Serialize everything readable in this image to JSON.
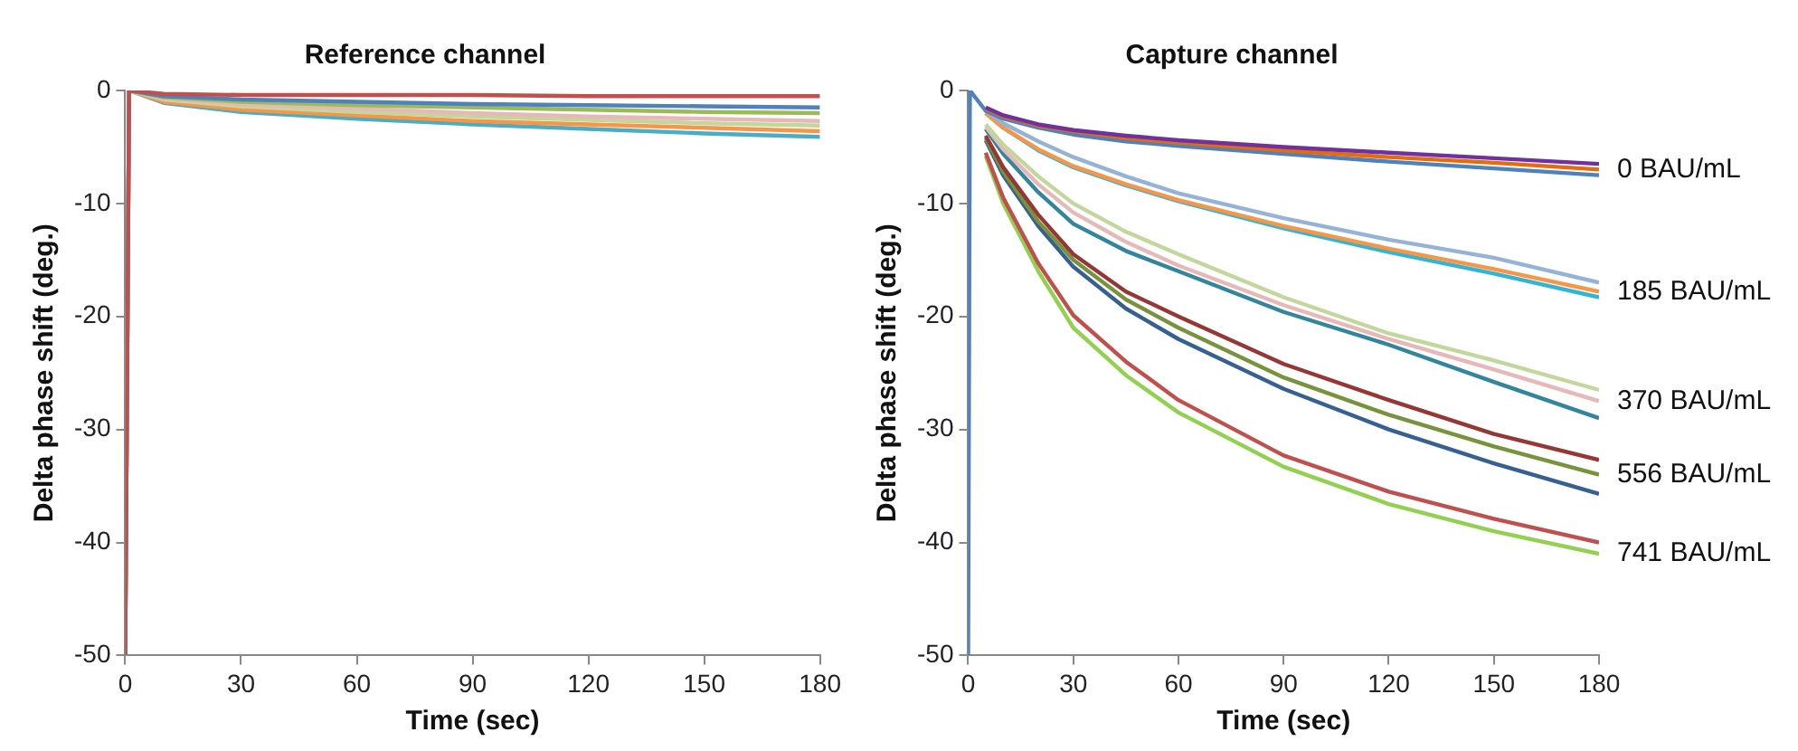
{
  "chart_data": [
    {
      "type": "line",
      "title": "Reference channel",
      "xlabel": "Time (sec)",
      "ylabel": "Delta phase shift (deg.)",
      "x": [
        0,
        1,
        10,
        30,
        60,
        90,
        120,
        150,
        180
      ],
      "xlim": [
        0,
        180
      ],
      "xticks": [
        0,
        30,
        60,
        90,
        120,
        150,
        180
      ],
      "ylim": [
        -50,
        0
      ],
      "yticks": [
        -50,
        -40,
        -30,
        -20,
        -10,
        0
      ],
      "grid": false,
      "legend": false,
      "marker": "none",
      "line_style": "solid",
      "series": [
        {
          "color": "#c0504d",
          "values": [
            -50,
            0,
            -0.3,
            -0.4,
            -0.4,
            -0.4,
            -0.5,
            -0.5,
            -0.5
          ]
        },
        {
          "color": "#4f81bd",
          "values": [
            -50,
            0,
            -0.5,
            -0.8,
            -1,
            -1.2,
            -1.3,
            -1.4,
            -1.5
          ]
        },
        {
          "color": "#9bbb59",
          "values": [
            -50,
            0,
            -0.6,
            -1,
            -1.3,
            -1.5,
            -1.7,
            -1.9,
            -2
          ]
        },
        {
          "color": "#e6b9b8",
          "values": [
            -50,
            0,
            -0.7,
            -1.2,
            -1.6,
            -2,
            -2.3,
            -2.5,
            -2.7
          ]
        },
        {
          "color": "#c3d69b",
          "values": [
            -50,
            0,
            -0.8,
            -1.4,
            -1.9,
            -2.3,
            -2.6,
            -2.9,
            -3.1
          ]
        },
        {
          "color": "#f79646",
          "values": [
            -50,
            0,
            -1,
            -1.7,
            -2.2,
            -2.7,
            -3,
            -3.3,
            -3.6
          ]
        },
        {
          "color": "#4bacc6",
          "values": [
            -50,
            0,
            -1.1,
            -1.9,
            -2.5,
            -3,
            -3.4,
            -3.8,
            -4.1
          ]
        }
      ]
    },
    {
      "type": "line",
      "title": "Capture channel",
      "xlabel": "Time (sec)",
      "ylabel": "Delta phase shift (deg.)",
      "x": [
        0,
        0.5,
        5,
        10,
        20,
        30,
        45,
        60,
        90,
        120,
        150,
        180
      ],
      "xlim": [
        0,
        180
      ],
      "xticks": [
        0,
        30,
        60,
        90,
        120,
        150,
        180
      ],
      "ylim": [
        -50,
        0
      ],
      "yticks": [
        -50,
        -40,
        -30,
        -20,
        -10,
        0
      ],
      "grid": false,
      "legend": false,
      "marker": "none",
      "line_style": "solid",
      "series": [
        {
          "color": "#7030a0",
          "values": [
            null,
            null,
            -1.5,
            -2.2,
            -3,
            -3.5,
            -4,
            -4.4,
            -5,
            -5.5,
            -6,
            -6.5
          ]
        },
        {
          "name": "0 BAU/mL",
          "color": "#e46c0a",
          "values": [
            null,
            null,
            -1.6,
            -2.3,
            -3.1,
            -3.6,
            -4.2,
            -4.6,
            -5.3,
            -5.9,
            -6.4,
            -7
          ]
        },
        {
          "color": "#4f81bd",
          "values": [
            -50,
            0,
            -1.8,
            -2.5,
            -3.3,
            -3.9,
            -4.5,
            -4.9,
            -5.6,
            -6.3,
            -6.9,
            -7.5
          ]
        },
        {
          "color": "#95b3d7",
          "values": [
            null,
            null,
            -1.8,
            -2.9,
            -4.5,
            -5.9,
            -7.6,
            -9.1,
            -11.3,
            -13.2,
            -14.8,
            -17
          ]
        },
        {
          "name": "185 BAU/mL",
          "color": "#f79646",
          "values": [
            null,
            null,
            -2,
            -3.3,
            -5.2,
            -6.7,
            -8.3,
            -9.7,
            -12,
            -14,
            -15.8,
            -17.8
          ]
        },
        {
          "color": "#31b5d6",
          "values": [
            null,
            null,
            -2,
            -3.3,
            -5.3,
            -6.8,
            -8.4,
            -9.8,
            -12.2,
            -14.3,
            -16.2,
            -18.3
          ]
        },
        {
          "color": "#c3d69b",
          "values": [
            null,
            null,
            -3,
            -4.8,
            -7.6,
            -10,
            -12.5,
            -14.5,
            -18.3,
            -21.5,
            -23.9,
            -26.5
          ]
        },
        {
          "name": "370 BAU/mL",
          "color": "#e6b9b8",
          "values": [
            null,
            null,
            -3.2,
            -5.2,
            -8.3,
            -10.8,
            -13.4,
            -15.5,
            -19,
            -22,
            -24.7,
            -27.5
          ]
        },
        {
          "color": "#31859c",
          "values": [
            null,
            null,
            -3.4,
            -5.6,
            -9,
            -11.8,
            -14.2,
            -16,
            -19.6,
            -22.5,
            -25.8,
            -29
          ]
        },
        {
          "color": "#953735",
          "values": [
            null,
            null,
            -4,
            -6.8,
            -11,
            -14.5,
            -17.8,
            -20,
            -24.2,
            -27.4,
            -30.4,
            -32.7
          ]
        },
        {
          "name": "556 BAU/mL",
          "color": "#77933c",
          "values": [
            null,
            null,
            -4.2,
            -7.2,
            -11.6,
            -15,
            -18.5,
            -21,
            -25.4,
            -28.7,
            -31.5,
            -34
          ]
        },
        {
          "color": "#376092",
          "values": [
            null,
            null,
            -4.4,
            -7.5,
            -12,
            -15.6,
            -19.3,
            -22,
            -26.4,
            -30,
            -33,
            -35.7
          ]
        },
        {
          "color": "#c0504d",
          "values": [
            null,
            null,
            -5.5,
            -9.5,
            -15.3,
            -19.9,
            -24,
            -27.4,
            -32.3,
            -35.5,
            -37.9,
            -40
          ]
        },
        {
          "name": "741 BAU/mL",
          "color": "#92d050",
          "values": [
            null,
            null,
            -5.8,
            -10,
            -16,
            -21,
            -25.2,
            -28.5,
            -33.3,
            -36.6,
            -39,
            -41
          ]
        }
      ]
    }
  ]
}
